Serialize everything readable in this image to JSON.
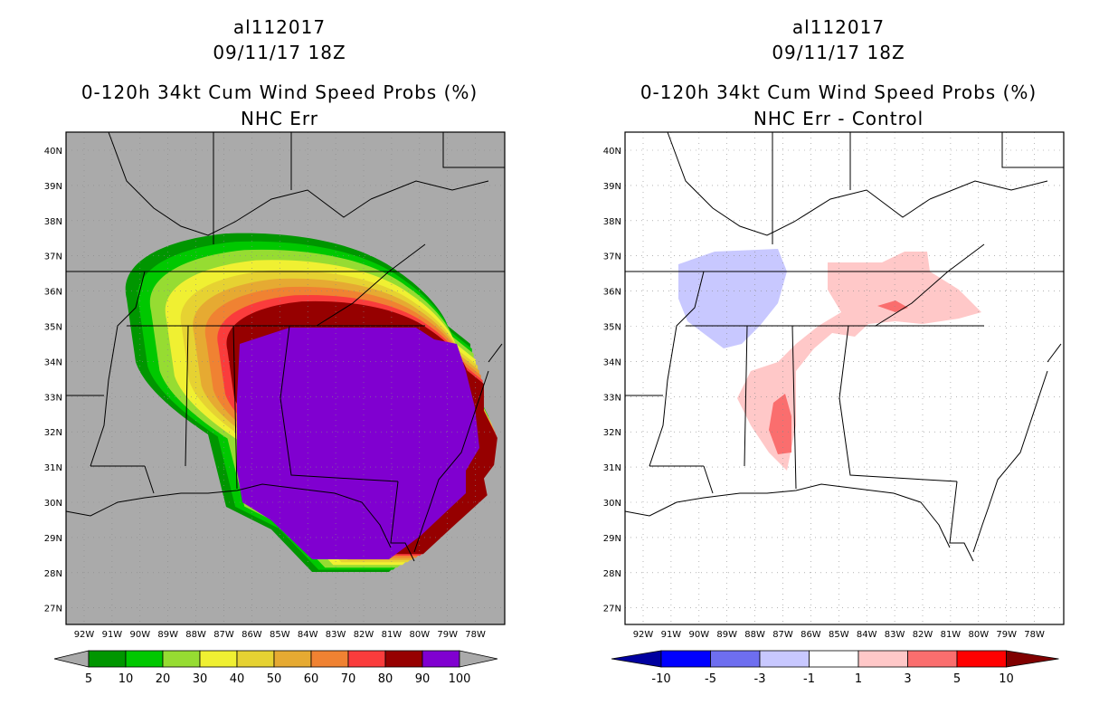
{
  "left_panel": {
    "title_lines": [
      "al112017",
      "09/11/17 18Z",
      "0-120h 34kt Cum Wind Speed Probs (%)",
      "NHC Err"
    ],
    "colorbar": {
      "labels": [
        "5",
        "10",
        "20",
        "30",
        "40",
        "50",
        "60",
        "70",
        "80",
        "90",
        "100"
      ],
      "colors": [
        "#009600",
        "#00c800",
        "#96dc32",
        "#f0f032",
        "#e6d232",
        "#e6aa32",
        "#f08232",
        "#fa3c3c",
        "#960000",
        "#8000d0"
      ]
    }
  },
  "right_panel": {
    "title_lines": [
      "al112017",
      "09/11/17 18Z",
      "0-120h 34kt Cum Wind Speed Probs (%)",
      "NHC Err - Control"
    ],
    "colorbar": {
      "labels": [
        "-10",
        "-5",
        "-3",
        "-1",
        "1",
        "3",
        "5",
        "10"
      ],
      "colors": [
        "#0000a0",
        "#0000ff",
        "#6e6ef0",
        "#c8c8ff",
        "#ffffff",
        "#ffc8c8",
        "#fa6e6e",
        "#ff0000",
        "#800000"
      ]
    }
  },
  "axes": {
    "lat_labels": [
      "40N",
      "39N",
      "38N",
      "37N",
      "36N",
      "35N",
      "34N",
      "33N",
      "32N",
      "31N",
      "30N",
      "29N",
      "28N",
      "27N"
    ],
    "lon_labels": [
      "92W",
      "91W",
      "90W",
      "89W",
      "88W",
      "87W",
      "86W",
      "85W",
      "84W",
      "83W",
      "82W",
      "81W",
      "80W",
      "79W",
      "78W"
    ]
  },
  "colors": {
    "land_background_left": "#aaaaaa",
    "land_background_right": "#ffffff",
    "borders": "#000000"
  }
}
